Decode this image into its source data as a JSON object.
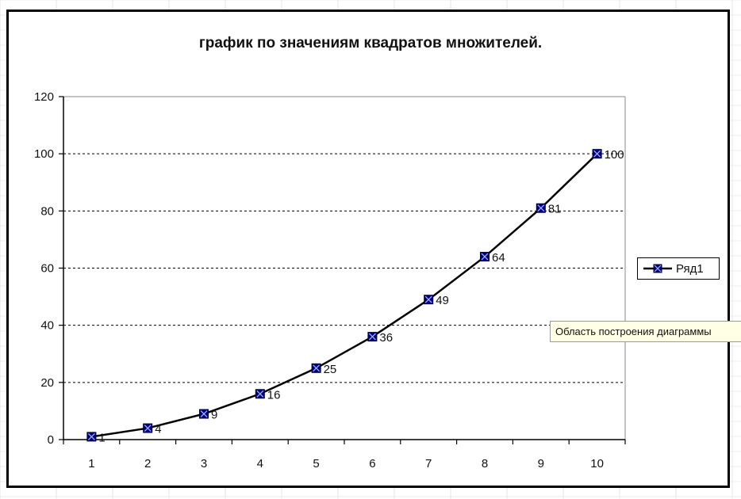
{
  "chart_data": {
    "type": "line",
    "title": "график по значениям квадратов множителей.",
    "xlabel": "",
    "ylabel": "",
    "categories": [
      "1",
      "2",
      "3",
      "4",
      "5",
      "6",
      "7",
      "8",
      "9",
      "10"
    ],
    "series": [
      {
        "name": "Ряд1",
        "values": [
          1,
          4,
          9,
          16,
          25,
          36,
          49,
          64,
          81,
          100
        ],
        "data_labels": [
          "1",
          "4",
          "9",
          "16",
          "25",
          "36",
          "49",
          "64",
          "81",
          "100"
        ],
        "color": "#000080",
        "line_color": "#000000",
        "marker": "square-x"
      }
    ],
    "ylim": [
      0,
      120
    ],
    "yticks": [
      "0",
      "20",
      "40",
      "60",
      "80",
      "100",
      "120"
    ],
    "grid": "horizontal-dashed",
    "legend": "right"
  },
  "tooltip": {
    "text": "Область построения диаграммы"
  }
}
